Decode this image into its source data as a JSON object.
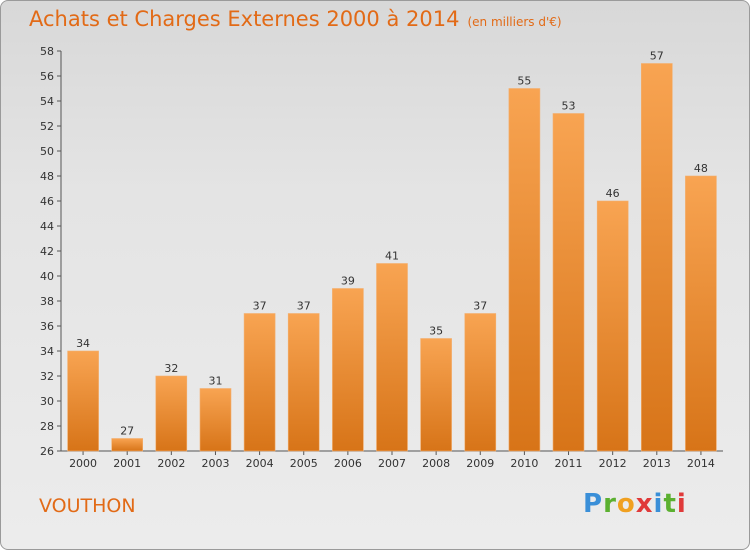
{
  "header": {
    "title": "Achats et Charges Externes 2000 à 2014",
    "subtitle": "(en milliers d'€)"
  },
  "footer": {
    "commune": "VOUTHON",
    "logo_text": "Proxiti"
  },
  "colors": {
    "bar_top": "#f8a452",
    "bar_bottom": "#d77418",
    "title": "#e26a16"
  },
  "chart_data": {
    "type": "bar",
    "title": "Achats et Charges Externes 2000 à 2014",
    "subtitle": "(en milliers d'€)",
    "xlabel": "",
    "ylabel": "",
    "categories": [
      "2000",
      "2001",
      "2002",
      "2003",
      "2004",
      "2005",
      "2006",
      "2007",
      "2008",
      "2009",
      "2010",
      "2011",
      "2012",
      "2013",
      "2014"
    ],
    "values": [
      34,
      27,
      32,
      31,
      37,
      37,
      39,
      41,
      35,
      37,
      55,
      53,
      46,
      57,
      48
    ],
    "ylim": [
      26,
      58
    ],
    "yticks": [
      26,
      28,
      30,
      32,
      34,
      36,
      38,
      40,
      42,
      44,
      46,
      48,
      50,
      52,
      54,
      56,
      58
    ],
    "grid": false,
    "legend": "none",
    "data_labels": true
  }
}
